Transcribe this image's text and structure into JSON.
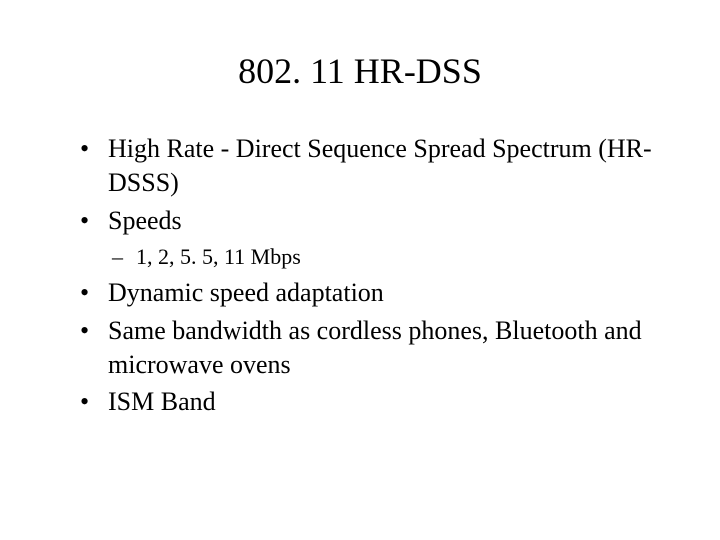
{
  "slide": {
    "title": "802. 11 HR-DSS",
    "bullets": [
      {
        "text": "High Rate - Direct Sequence Spread Spectrum (HR-DSSS)",
        "sub": []
      },
      {
        "text": "Speeds",
        "sub": [
          "1, 2, 5. 5, 11 Mbps"
        ]
      },
      {
        "text": "Dynamic speed adaptation",
        "sub": []
      },
      {
        "text": "Same bandwidth as cordless phones, Bluetooth and microwave ovens",
        "sub": []
      },
      {
        "text": "ISM Band",
        "sub": []
      }
    ]
  },
  "style": {
    "background_color": "#ffffff",
    "text_color": "#000000",
    "font_family": "Times New Roman",
    "title_fontsize": 36,
    "bullet_fontsize": 26,
    "sub_bullet_fontsize": 22
  }
}
